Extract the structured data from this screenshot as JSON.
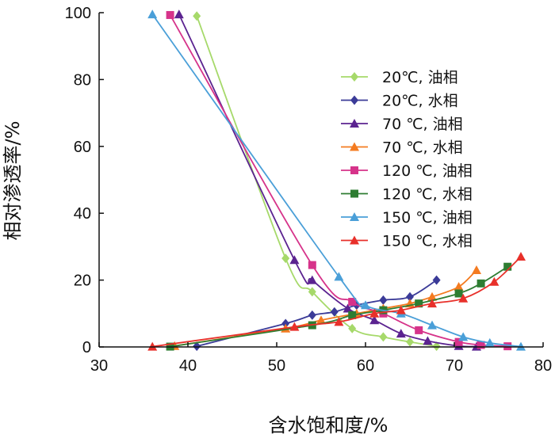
{
  "chart_data": {
    "type": "line",
    "xlabel": "含水饱和度/%",
    "ylabel": "相对渗透率/%",
    "xlim": [
      30,
      80
    ],
    "ylim": [
      0,
      100
    ],
    "xticks": [
      "30",
      "40",
      "50",
      "60",
      "70",
      "80"
    ],
    "yticks": [
      "0",
      "20",
      "40",
      "60",
      "80",
      "100"
    ],
    "legend_position": "top-right",
    "series": [
      {
        "name": "20℃, 油相",
        "color": "#a6d96a",
        "marker": "diamond",
        "points": [
          [
            41,
            99
          ],
          [
            51,
            26.5
          ],
          [
            54,
            16.5
          ],
          [
            58.5,
            5.5
          ],
          [
            62,
            3
          ],
          [
            65,
            1.5
          ],
          [
            68,
            0.2
          ]
        ]
      },
      {
        "name": "20℃, 水相",
        "color": "#3b3b98",
        "marker": "diamond",
        "points": [
          [
            41,
            0.2
          ],
          [
            51,
            7
          ],
          [
            54,
            9.5
          ],
          [
            56.5,
            10.5
          ],
          [
            59,
            12.5
          ],
          [
            62,
            14
          ],
          [
            65,
            15
          ],
          [
            68,
            20
          ]
        ]
      },
      {
        "name": "70 ℃, 油相",
        "color": "#5b2390",
        "marker": "triangle",
        "points": [
          [
            39,
            99.5
          ],
          [
            52,
            26
          ],
          [
            54,
            20
          ],
          [
            58,
            11.5
          ],
          [
            61,
            8
          ],
          [
            64,
            4
          ],
          [
            67,
            1.8
          ],
          [
            70.5,
            0.3
          ],
          [
            72.5,
            0.1
          ]
        ]
      },
      {
        "name": "70 ℃, 水相",
        "color": "#f47b20",
        "marker": "triangle",
        "points": [
          [
            38.5,
            0.3
          ],
          [
            51,
            5.5
          ],
          [
            55,
            8
          ],
          [
            59,
            10
          ],
          [
            62,
            11.5
          ],
          [
            65,
            13
          ],
          [
            67.5,
            15
          ],
          [
            70.5,
            18
          ],
          [
            72.5,
            23
          ]
        ]
      },
      {
        "name": "120 ℃, 油相",
        "color": "#d6338a",
        "marker": "square",
        "points": [
          [
            38,
            99.3
          ],
          [
            54,
            24.5
          ],
          [
            58.5,
            13.5
          ],
          [
            62,
            10
          ],
          [
            66,
            5
          ],
          [
            70.5,
            1.5
          ],
          [
            73,
            0.6
          ],
          [
            76,
            0.2
          ]
        ]
      },
      {
        "name": "120 ℃, 水相",
        "color": "#2e7d32",
        "marker": "square",
        "points": [
          [
            38,
            0.1
          ],
          [
            54,
            6.5
          ],
          [
            58.5,
            9.5
          ],
          [
            62,
            11
          ],
          [
            66,
            13
          ],
          [
            70.5,
            16
          ],
          [
            73,
            19
          ],
          [
            76,
            24
          ]
        ]
      },
      {
        "name": "150 ℃, 油相",
        "color": "#4a9fd8",
        "marker": "triangle",
        "points": [
          [
            36,
            99.5
          ],
          [
            57,
            21
          ],
          [
            60,
            12.5
          ],
          [
            64,
            10
          ],
          [
            67.5,
            6.5
          ],
          [
            71,
            3
          ],
          [
            74,
            1.2
          ],
          [
            77.5,
            0.1
          ]
        ]
      },
      {
        "name": "150 ℃, 水相",
        "color": "#e8302a",
        "marker": "triangle",
        "points": [
          [
            36,
            0.1
          ],
          [
            52,
            6
          ],
          [
            57,
            7.5
          ],
          [
            61,
            10
          ],
          [
            64,
            11
          ],
          [
            67.5,
            13
          ],
          [
            71,
            14.5
          ],
          [
            74.5,
            19.5
          ],
          [
            77.5,
            27
          ]
        ]
      }
    ]
  }
}
